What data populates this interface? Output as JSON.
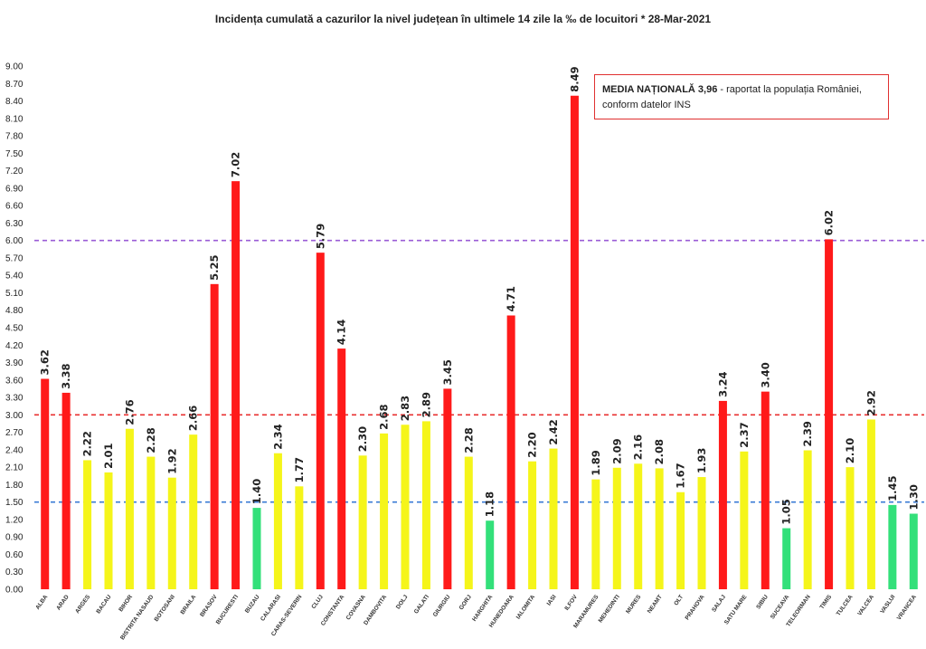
{
  "chart_data": {
    "type": "bar",
    "title": "Incidența cumulată a cazurilor la nivel județean în ultimele 14 zile la ‰ de locuitori * 28-Mar-2021",
    "categories": [
      "ALBA",
      "ARAD",
      "ARGES",
      "BACAU",
      "BIHOR",
      "BISTRITA NASAUD",
      "BOTOSANI",
      "BRAILA",
      "BRASOV",
      "BUCURESTI",
      "BUZAU",
      "CALARASI",
      "CARAS-SEVERIN",
      "CLUJ",
      "CONSTANTA",
      "COVASNA",
      "DAMBOVITA",
      "DOLJ",
      "GALATI",
      "GIURGIU",
      "GORJ",
      "HARGHITA",
      "HUNEDOARA",
      "IALOMITA",
      "IASI",
      "ILFOV",
      "MARAMURES",
      "MEHEDINTI",
      "MURES",
      "NEAMT",
      "OLT",
      "PRAHOVA",
      "SALAJ",
      "SATU MARE",
      "SIBIU",
      "SUCEAVA",
      "TELEORMAN",
      "TIMIS",
      "TULCEA",
      "VALCEA",
      "VASLUI",
      "VRANCEA"
    ],
    "values": [
      3.62,
      3.38,
      2.22,
      2.01,
      2.76,
      2.28,
      1.92,
      2.66,
      5.25,
      7.02,
      1.4,
      2.34,
      1.77,
      5.79,
      4.14,
      2.3,
      2.68,
      2.83,
      2.89,
      3.45,
      2.28,
      1.18,
      4.71,
      2.2,
      2.42,
      8.49,
      1.89,
      2.09,
      2.16,
      2.08,
      1.67,
      1.93,
      3.24,
      2.37,
      3.4,
      1.05,
      2.39,
      6.02,
      2.1,
      2.92,
      1.45,
      1.3
    ],
    "value_labels": [
      "3.62",
      "3.38",
      "2.22",
      "2.01",
      "2.76",
      "2.28",
      "1.92",
      "2.66",
      "5.25",
      "7.02",
      "1.40",
      "2.34",
      "1.77",
      "5.79",
      "4.14",
      "2.30",
      "2.68",
      "2.83",
      "2.89",
      "3.45",
      "2.28",
      "1.18",
      "4.71",
      "2.20",
      "2.42",
      "8.49",
      "1.89",
      "2.09",
      "2.16",
      "2.08",
      "1.67",
      "1.93",
      "3.24",
      "2.37",
      "3.40",
      "1.05",
      "2.39",
      "6.02",
      "2.10",
      "2.92",
      "1.45",
      "1.30"
    ],
    "ylim": [
      0,
      9
    ],
    "yticks": [
      "0.00",
      "0.30",
      "0.60",
      "0.90",
      "1.20",
      "1.50",
      "1.80",
      "2.10",
      "2.40",
      "2.70",
      "3.00",
      "3.30",
      "3.60",
      "3.90",
      "4.20",
      "4.50",
      "4.80",
      "5.10",
      "5.40",
      "5.70",
      "6.00",
      "6.30",
      "6.60",
      "6.90",
      "7.20",
      "7.50",
      "7.80",
      "8.10",
      "8.40",
      "8.70",
      "9.00"
    ],
    "thresholds": [
      {
        "value": 1.5,
        "color": "#3a7bd5"
      },
      {
        "value": 3.0,
        "color": "#e83030"
      },
      {
        "value": 6.0,
        "color": "#9a5cd6"
      }
    ],
    "colors": {
      "green": "#33e07a",
      "yellow": "#f5f51a",
      "red": "#ff1a1a"
    },
    "grid": false,
    "annotation": {
      "bold": "MEDIA NAȚIONALĂ  3,96",
      "rest": " - raportat la populația României,",
      "line2": "conform datelor INS"
    }
  }
}
